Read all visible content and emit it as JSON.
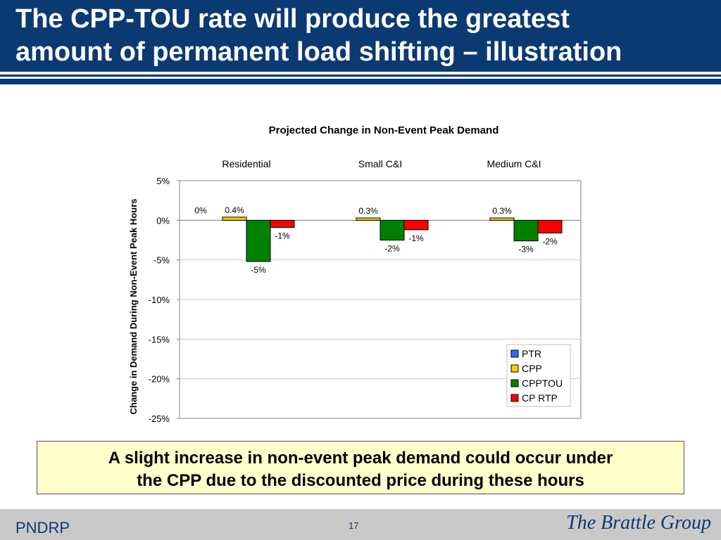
{
  "slide": {
    "title_line1": "The CPP-TOU rate will produce the greatest",
    "title_line2": "amount of permanent load shifting – illustration",
    "callout_line1": "A slight increase in non-event peak demand could occur under",
    "callout_line2": "the CPP due to the discounted price during these hours",
    "footer_left": "PNDRP",
    "page_number": "17",
    "logo_text": "The Brattle Group"
  },
  "colors": {
    "brand_navy": "#0b3a73",
    "callout_bg": "#ffffcc",
    "footer_bg": "#c9c9c9"
  },
  "chart_data": {
    "type": "bar",
    "title": "Projected Change in Non-Event Peak Demand",
    "ylabel": "Change in Demand During Non-Event Peak Hours",
    "xlabel": "",
    "categories": [
      "Residential",
      "Small C&I",
      "Medium C&I"
    ],
    "ylim": [
      -25,
      5
    ],
    "yticks": [
      5,
      0,
      -5,
      -10,
      -15,
      -20,
      -25
    ],
    "ytick_labels": [
      "5%",
      "0%",
      "-5%",
      "-10%",
      "-15%",
      "-20%",
      "-25%"
    ],
    "grid": true,
    "legend_position": "bottom-right",
    "series": [
      {
        "name": "PTR",
        "color": "#3366ff",
        "values": [
          0,
          null,
          null
        ],
        "labels": [
          "0%",
          "",
          ""
        ]
      },
      {
        "name": "CPP",
        "color": "#ffcc00",
        "values": [
          0.4,
          0.3,
          0.3
        ],
        "labels": [
          "0.4%",
          "0.3%",
          "0.3%"
        ]
      },
      {
        "name": "CPPTOU",
        "color": "#008000",
        "values": [
          -5.2,
          -2.5,
          -2.6
        ],
        "labels": [
          "-5%",
          "-2%",
          "-3%"
        ]
      },
      {
        "name": "CP RTP",
        "color": "#ff0000",
        "values": [
          -0.9,
          -1.2,
          -1.6
        ],
        "labels": [
          "-1%",
          "-1%",
          "-2%"
        ]
      }
    ]
  }
}
